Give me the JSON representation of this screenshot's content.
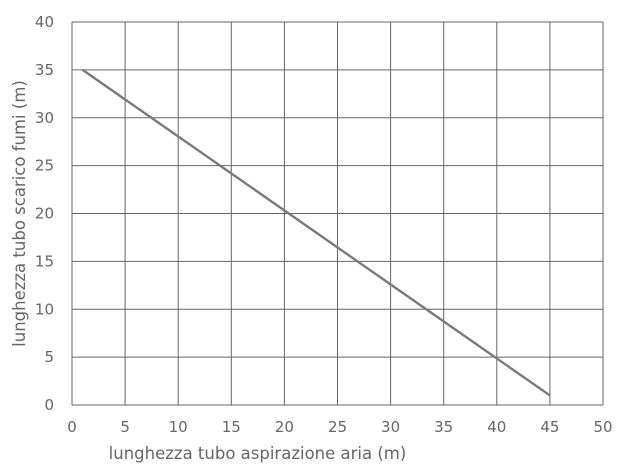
{
  "chart_data": {
    "type": "line",
    "title": "",
    "xlabel": "lunghezza tubo aspirazione aria (m)",
    "ylabel": "lunghezza tubo scarico fumi (m)",
    "xlim": [
      0,
      50
    ],
    "ylim": [
      0,
      40
    ],
    "x_ticks": [
      0,
      5,
      10,
      15,
      20,
      25,
      30,
      35,
      40,
      45,
      50
    ],
    "y_ticks": [
      0,
      5,
      10,
      15,
      20,
      25,
      30,
      35,
      40
    ],
    "grid": true,
    "legend": "none",
    "series": [
      {
        "x": [
          1,
          45
        ],
        "y": [
          35,
          1
        ]
      }
    ],
    "colors": {
      "line": "#7a7a7a",
      "grid": "#666666",
      "text": "#666666"
    }
  }
}
